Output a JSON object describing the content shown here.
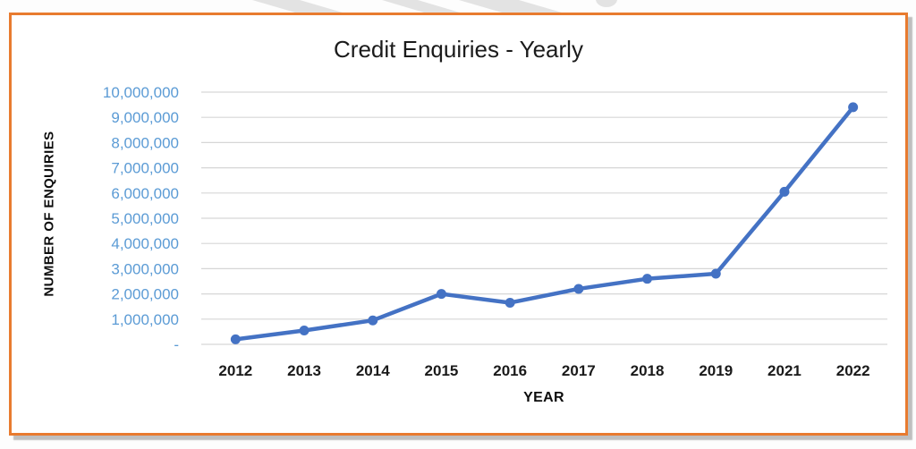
{
  "page": {
    "border_color": "#E87B2F",
    "watermark_color": "#E3E3E3",
    "background_color": "#FFFFFF"
  },
  "chart_data": {
    "type": "line",
    "title": "Credit Enquiries - Yearly",
    "xlabel": "YEAR",
    "ylabel": "NUMBER OF ENQUIRIES",
    "categories": [
      "2012",
      "2013",
      "2014",
      "2015",
      "2016",
      "2017",
      "2018",
      "2019",
      "2021",
      "2022"
    ],
    "values": [
      200000,
      550000,
      950000,
      2000000,
      1650000,
      2200000,
      2600000,
      2800000,
      6050000,
      9400000
    ],
    "series_name": "Credit Enquiries",
    "ylim": [
      0,
      10000000
    ],
    "y_tick_step": 1000000,
    "y_tick_labels": [
      "-",
      "1,000,000",
      "2,000,000",
      "3,000,000",
      "4,000,000",
      "5,000,000",
      "6,000,000",
      "7,000,000",
      "8,000,000",
      "9,000,000",
      "10,000,000"
    ],
    "grid": true,
    "legend": "none",
    "line_color": "#4472C4",
    "marker": "circle",
    "y_tick_color": "#5B9BD5",
    "x_tick_color": "#1A1A1A",
    "gridline_color": "#D6D6D6"
  }
}
